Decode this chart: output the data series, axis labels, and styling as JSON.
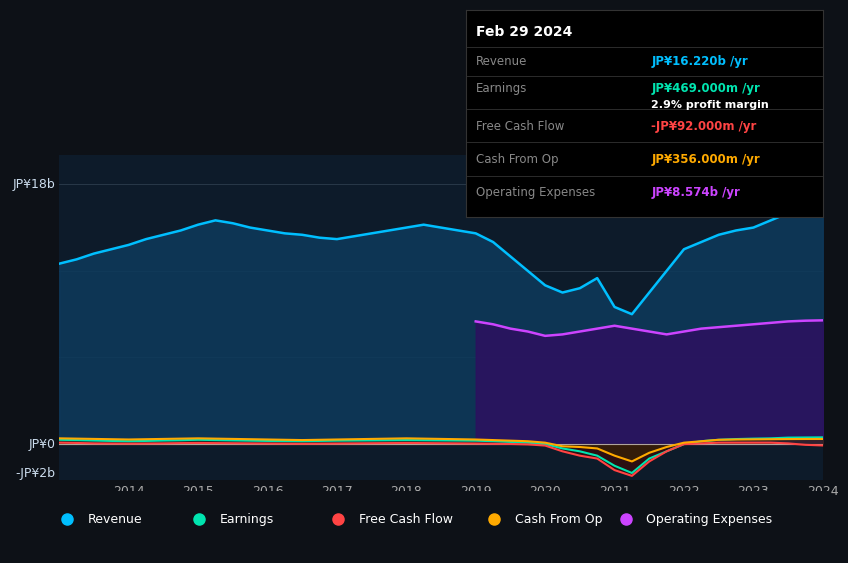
{
  "bg_color": "#0d1117",
  "plot_bg_color": "#0d1b2a",
  "title_date": "Feb 29 2024",
  "tooltip": {
    "Revenue": {
      "value": "JP¥16.220b /yr",
      "color": "#00bfff"
    },
    "Earnings": {
      "value": "JP¥469.000m /yr",
      "color": "#00e5b0"
    },
    "profit_margin": "2.9% profit margin",
    "Free Cash Flow": {
      "value": "-JP¥92.000m /yr",
      "color": "#ff4444"
    },
    "Cash From Op": {
      "value": "JP¥356.000m /yr",
      "color": "#ffaa00"
    },
    "Operating Expenses": {
      "value": "JP¥8.574b /yr",
      "color": "#cc44ff"
    }
  },
  "ylabel_top": "JP¥18b",
  "ylabel_zero": "JP¥0",
  "ylabel_neg": "-JP¥2b",
  "years": [
    2013.0,
    2013.25,
    2013.5,
    2013.75,
    2014.0,
    2014.25,
    2014.5,
    2014.75,
    2015.0,
    2015.25,
    2015.5,
    2015.75,
    2016.0,
    2016.25,
    2016.5,
    2016.75,
    2017.0,
    2017.25,
    2017.5,
    2017.75,
    2018.0,
    2018.25,
    2018.5,
    2018.75,
    2019.0,
    2019.25,
    2019.5,
    2019.75,
    2020.0,
    2020.25,
    2020.5,
    2020.75,
    2021.0,
    2021.25,
    2021.5,
    2021.75,
    2022.0,
    2022.25,
    2022.5,
    2022.75,
    2023.0,
    2023.25,
    2023.5,
    2023.75,
    2024.0
  ],
  "revenue": [
    12.5,
    12.8,
    13.2,
    13.5,
    13.8,
    14.2,
    14.5,
    14.8,
    15.2,
    15.5,
    15.3,
    15.0,
    14.8,
    14.6,
    14.5,
    14.3,
    14.2,
    14.4,
    14.6,
    14.8,
    15.0,
    15.2,
    15.0,
    14.8,
    14.6,
    14.0,
    13.0,
    12.0,
    11.0,
    10.5,
    10.8,
    11.5,
    9.5,
    9.0,
    10.5,
    12.0,
    13.5,
    14.0,
    14.5,
    14.8,
    15.0,
    15.5,
    16.0,
    16.1,
    16.22
  ],
  "earnings": [
    0.3,
    0.28,
    0.25,
    0.22,
    0.2,
    0.22,
    0.25,
    0.27,
    0.3,
    0.28,
    0.26,
    0.24,
    0.22,
    0.21,
    0.2,
    0.22,
    0.24,
    0.25,
    0.26,
    0.27,
    0.28,
    0.27,
    0.26,
    0.25,
    0.24,
    0.2,
    0.15,
    0.1,
    0.0,
    -0.3,
    -0.5,
    -0.8,
    -1.5,
    -2.0,
    -1.0,
    -0.5,
    0.0,
    0.2,
    0.3,
    0.35,
    0.38,
    0.4,
    0.45,
    0.46,
    0.469
  ],
  "free_cash_flow": [
    0.1,
    0.08,
    0.05,
    0.04,
    0.03,
    0.04,
    0.05,
    0.07,
    0.08,
    0.07,
    0.06,
    0.05,
    0.04,
    0.03,
    0.02,
    0.03,
    0.04,
    0.05,
    0.06,
    0.07,
    0.08,
    0.07,
    0.06,
    0.05,
    0.04,
    0.02,
    0.01,
    -0.02,
    -0.1,
    -0.5,
    -0.8,
    -1.0,
    -1.8,
    -2.2,
    -1.2,
    -0.5,
    0.0,
    0.05,
    0.1,
    0.1,
    0.1,
    0.1,
    0.05,
    -0.05,
    -0.092
  ],
  "cash_from_op": [
    0.4,
    0.38,
    0.36,
    0.34,
    0.32,
    0.34,
    0.36,
    0.38,
    0.4,
    0.38,
    0.36,
    0.34,
    0.32,
    0.3,
    0.28,
    0.3,
    0.32,
    0.34,
    0.36,
    0.38,
    0.4,
    0.38,
    0.36,
    0.34,
    0.32,
    0.28,
    0.24,
    0.2,
    0.1,
    -0.15,
    -0.2,
    -0.3,
    -0.8,
    -1.2,
    -0.6,
    -0.2,
    0.1,
    0.2,
    0.3,
    0.32,
    0.33,
    0.34,
    0.35,
    0.355,
    0.356
  ],
  "op_expenses": [
    0.0,
    0.0,
    0.0,
    0.0,
    0.0,
    0.0,
    0.0,
    0.0,
    0.0,
    0.0,
    0.0,
    0.0,
    0.0,
    0.0,
    0.0,
    0.0,
    0.0,
    0.0,
    0.0,
    0.0,
    0.0,
    0.0,
    0.0,
    0.0,
    8.5,
    8.3,
    8.0,
    7.8,
    7.5,
    7.6,
    7.8,
    8.0,
    8.2,
    8.0,
    7.8,
    7.6,
    7.8,
    8.0,
    8.1,
    8.2,
    8.3,
    8.4,
    8.5,
    8.55,
    8.574
  ],
  "colors": {
    "revenue": "#00bfff",
    "earnings": "#00e5b0",
    "free_cash_flow": "#ff4444",
    "cash_from_op": "#ffaa00",
    "op_expenses": "#cc44ff",
    "revenue_fill": "#0d3a5c",
    "op_fill": "#2d1060"
  },
  "xtick_years": [
    2014,
    2015,
    2016,
    2017,
    2018,
    2019,
    2020,
    2021,
    2022,
    2023,
    2024
  ],
  "ylim": [
    -2.5,
    20.0
  ],
  "legend": [
    {
      "label": "Revenue",
      "color": "#00bfff"
    },
    {
      "label": "Earnings",
      "color": "#00e5b0"
    },
    {
      "label": "Free Cash Flow",
      "color": "#ff4444"
    },
    {
      "label": "Cash From Op",
      "color": "#ffaa00"
    },
    {
      "label": "Operating Expenses",
      "color": "#cc44ff"
    }
  ]
}
